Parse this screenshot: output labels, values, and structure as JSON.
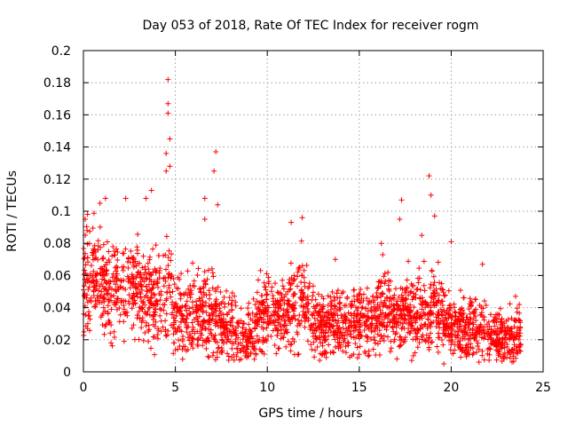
{
  "chart_data": {
    "type": "scatter",
    "title": "Day 053 of 2018, Rate Of TEC Index for receiver rogm",
    "xlabel": "GPS time / hours",
    "ylabel": "ROTI / TECUs",
    "xlim": [
      0,
      25
    ],
    "ylim": [
      0,
      0.2
    ],
    "x_ticks": [
      0,
      5,
      10,
      15,
      20,
      25
    ],
    "x_tick_labels": [
      "0",
      "5",
      "10",
      "15",
      "20",
      "25"
    ],
    "y_ticks": [
      0,
      0.02,
      0.04,
      0.06,
      0.08,
      0.1,
      0.12,
      0.14,
      0.16,
      0.18,
      0.2
    ],
    "y_tick_labels": [
      "0",
      "0.02",
      "0.04",
      "0.06",
      "0.08",
      "0.1",
      "0.12",
      "0.14",
      "0.16",
      "0.18",
      "0.2"
    ],
    "grid": true,
    "marker": "+",
    "color": "#ff0000",
    "series": [
      {
        "name": "ROTI",
        "profile": {
          "hours": [
            0,
            0.5,
            1,
            1.5,
            2,
            2.5,
            3,
            3.5,
            4,
            4.5,
            5,
            5.5,
            6,
            6.5,
            7,
            7.5,
            8,
            8.5,
            9,
            9.5,
            10,
            10.5,
            11,
            11.5,
            12,
            12.5,
            13,
            13.5,
            14,
            14.5,
            15,
            15.5,
            16,
            16.5,
            17,
            17.5,
            18,
            18.5,
            19,
            19.5,
            20,
            20.5,
            21,
            21.5,
            22,
            22.5,
            23,
            23.5,
            23.8
          ],
          "median_roti": [
            0.06,
            0.058,
            0.055,
            0.052,
            0.05,
            0.055,
            0.05,
            0.045,
            0.045,
            0.05,
            0.035,
            0.035,
            0.037,
            0.035,
            0.035,
            0.032,
            0.028,
            0.022,
            0.022,
            0.03,
            0.04,
            0.035,
            0.033,
            0.04,
            0.045,
            0.03,
            0.028,
            0.03,
            0.03,
            0.028,
            0.035,
            0.032,
            0.038,
            0.04,
            0.035,
            0.035,
            0.035,
            0.04,
            0.04,
            0.035,
            0.028,
            0.025,
            0.028,
            0.03,
            0.025,
            0.022,
            0.02,
            0.02,
            0.025
          ],
          "spread_roti": [
            0.02,
            0.02,
            0.018,
            0.017,
            0.016,
            0.016,
            0.016,
            0.017,
            0.018,
            0.02,
            0.014,
            0.014,
            0.015,
            0.015,
            0.015,
            0.013,
            0.012,
            0.01,
            0.01,
            0.012,
            0.014,
            0.013,
            0.013,
            0.015,
            0.016,
            0.012,
            0.011,
            0.012,
            0.012,
            0.011,
            0.013,
            0.012,
            0.014,
            0.014,
            0.013,
            0.013,
            0.013,
            0.015,
            0.015,
            0.013,
            0.011,
            0.011,
            0.011,
            0.012,
            0.011,
            0.01,
            0.009,
            0.009,
            0.01
          ]
        },
        "notable_points": [
          {
            "x": 0.1,
            "y": 0.095
          },
          {
            "x": 0.2,
            "y": 0.088
          },
          {
            "x": 0.9,
            "y": 0.105
          },
          {
            "x": 1.2,
            "y": 0.108
          },
          {
            "x": 1.5,
            "y": 0.018
          },
          {
            "x": 2.3,
            "y": 0.108
          },
          {
            "x": 3.4,
            "y": 0.108
          },
          {
            "x": 3.7,
            "y": 0.113
          },
          {
            "x": 4.5,
            "y": 0.136
          },
          {
            "x": 4.6,
            "y": 0.182
          },
          {
            "x": 4.6,
            "y": 0.167
          },
          {
            "x": 4.6,
            "y": 0.161
          },
          {
            "x": 4.7,
            "y": 0.145
          },
          {
            "x": 4.7,
            "y": 0.128
          },
          {
            "x": 4.5,
            "y": 0.125
          },
          {
            "x": 6.6,
            "y": 0.108
          },
          {
            "x": 6.6,
            "y": 0.095
          },
          {
            "x": 7.2,
            "y": 0.137
          },
          {
            "x": 7.1,
            "y": 0.125
          },
          {
            "x": 7.3,
            "y": 0.104
          },
          {
            "x": 8.8,
            "y": 0.01
          },
          {
            "x": 11.3,
            "y": 0.093
          },
          {
            "x": 11.9,
            "y": 0.096
          },
          {
            "x": 13.7,
            "y": 0.07
          },
          {
            "x": 16.2,
            "y": 0.08
          },
          {
            "x": 17.3,
            "y": 0.107
          },
          {
            "x": 17.2,
            "y": 0.095
          },
          {
            "x": 18.4,
            "y": 0.085
          },
          {
            "x": 18.8,
            "y": 0.122
          },
          {
            "x": 18.9,
            "y": 0.11
          },
          {
            "x": 19.1,
            "y": 0.097
          },
          {
            "x": 19.6,
            "y": 0.005
          },
          {
            "x": 20.0,
            "y": 0.081
          },
          {
            "x": 21.7,
            "y": 0.067
          },
          {
            "x": 23.5,
            "y": 0.047
          }
        ]
      }
    ]
  }
}
